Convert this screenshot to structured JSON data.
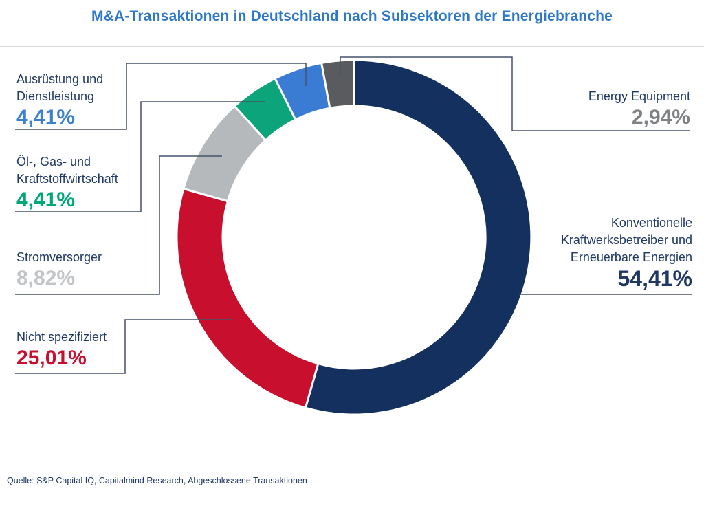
{
  "page": {
    "title": "M&A-Transaktionen in Deutschland nach Subsektoren der Energiebranche",
    "source": "Quelle: S&P Capital IQ, Capitalmind Research, Abgeschlossene Transaktionen"
  },
  "colors": {
    "title": "#2E78C8",
    "label_text": "#1F3864",
    "callout_line": "#44546A",
    "divider": "#D9D9D9",
    "background": "#FFFFFF",
    "slice_gap": "#FFFFFF"
  },
  "chart_data": {
    "type": "pie",
    "subtype": "donut",
    "title": "M&A-Transaktionen in Deutschland nach Subsektoren der Energiebranche",
    "unit": "%",
    "start_angle_deg": 0,
    "direction": "clockwise",
    "inner_radius_ratio": 0.74,
    "legend": "none",
    "data_labels": "external-callouts",
    "slices": [
      {
        "label": "Konventionelle Kraftwerksbetreiber und Erneuerbare Energien",
        "value": 54.41,
        "display": "54,41%",
        "color": "#13305F",
        "value_color": "#1F3864"
      },
      {
        "label": "Nicht spezifiziert",
        "value": 25.01,
        "display": "25,01%",
        "color": "#C8102E",
        "value_color": "#C8102E"
      },
      {
        "label": "Stromversorger",
        "value": 8.82,
        "display": "8,82%",
        "color": "#B6B9BB",
        "value_color": "#C2C5C7"
      },
      {
        "label": "Öl-, Gas- und Kraftstoffwirtschaft",
        "value": 4.41,
        "display": "4,41%",
        "color": "#0CA47B",
        "value_color": "#00A878"
      },
      {
        "label": "Ausrüstung und Dienstleistung",
        "value": 4.41,
        "display": "4,41%",
        "color": "#3A7CD4",
        "value_color": "#3B80D1"
      },
      {
        "label": "Energy Equipment",
        "value": 2.94,
        "display": "2,94%",
        "color": "#595B5E",
        "value_color": "#7F8284"
      }
    ]
  }
}
